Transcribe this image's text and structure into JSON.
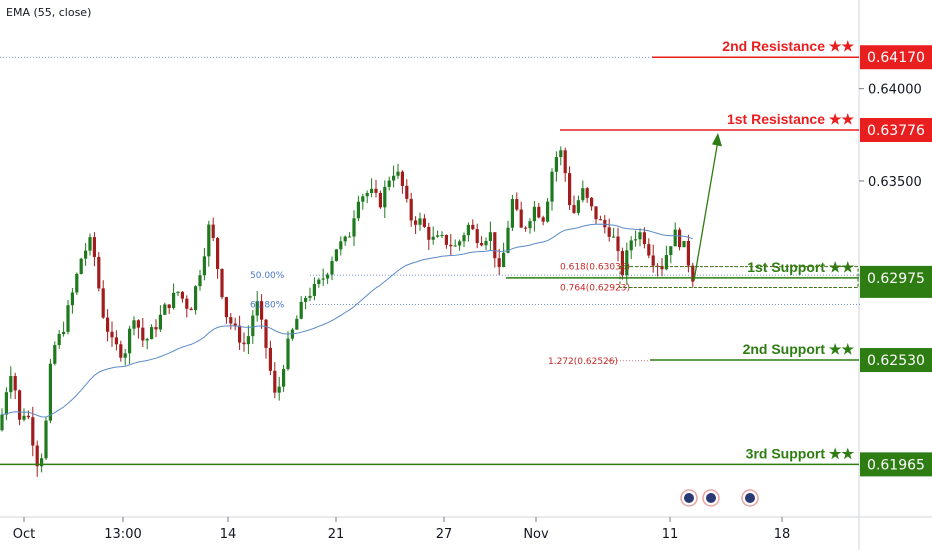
{
  "indicator": {
    "label": "EMA (55, close)"
  },
  "chart_data": {
    "type": "candlestick",
    "ylim": [
      0.6168,
      0.6448
    ],
    "y_ticks": [
      "0.64000",
      "0.63500"
    ],
    "x_ticks": [
      "Oct",
      "13:00",
      "14",
      "21",
      "27",
      "Nov",
      "11",
      "18"
    ],
    "levels": [
      {
        "label": "2nd Resistance ★★",
        "value": "0.64170",
        "type": "resistance"
      },
      {
        "label": "1st Resistance ★★",
        "value": "0.63776",
        "type": "resistance"
      },
      {
        "label": "1st Support ★★",
        "value": "0.62975",
        "type": "support"
      },
      {
        "label": "2nd Support ★★",
        "value": "0.62530",
        "type": "support"
      },
      {
        "label": "3rd Support ★★",
        "value": "0.61965",
        "type": "support"
      }
    ],
    "fib_labels": [
      {
        "label": "50.00%",
        "value": 0.6299
      },
      {
        "label": "61.80%",
        "value": 0.6283
      },
      {
        "label": "0.618(0.63036)",
        "value": 0.63036
      },
      {
        "label": "0.764(0.62923)",
        "value": 0.62923
      },
      {
        "label": "1.272(0.62526)",
        "value": 0.62526
      }
    ],
    "hidden_tag": "0.62975",
    "colors": {
      "resistance": "#e91e1e",
      "support": "#2e7d12",
      "up": "#1f7a1f",
      "down": "#a11d1d",
      "ema": "#5b8bc7",
      "fib": "#4a78c6",
      "fib_red": "#c62828"
    }
  }
}
